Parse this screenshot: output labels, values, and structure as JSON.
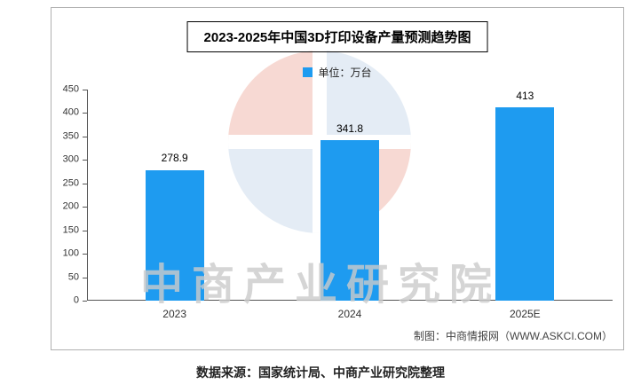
{
  "chart_data": {
    "type": "bar",
    "title": "2023-2025年中国3D打印设备产量预测趋势图",
    "legend": [
      "单位：万台"
    ],
    "legend_position": "top",
    "categories": [
      "2023",
      "2024",
      "2025E"
    ],
    "values": [
      278.9,
      341.8,
      413
    ],
    "data_labels": [
      "278.9",
      "341.8",
      "413"
    ],
    "ylim": [
      0,
      450
    ],
    "ytick_interval": 50,
    "yticks": [
      0,
      50,
      100,
      150,
      200,
      250,
      300,
      350,
      400,
      450
    ],
    "grid": false,
    "bar_color": "#1e9bf0",
    "xlabel": "",
    "ylabel": ""
  },
  "footer": {
    "credit": "制图：中商情报网（WWW.ASKCI.COM）",
    "source": "数据来源：国家统计局、中商产业研究院整理"
  },
  "watermark": {
    "text": "中商产业研究院",
    "logo_colors": {
      "salmon": "#efad9e",
      "blue": "#c5d7ea"
    }
  }
}
